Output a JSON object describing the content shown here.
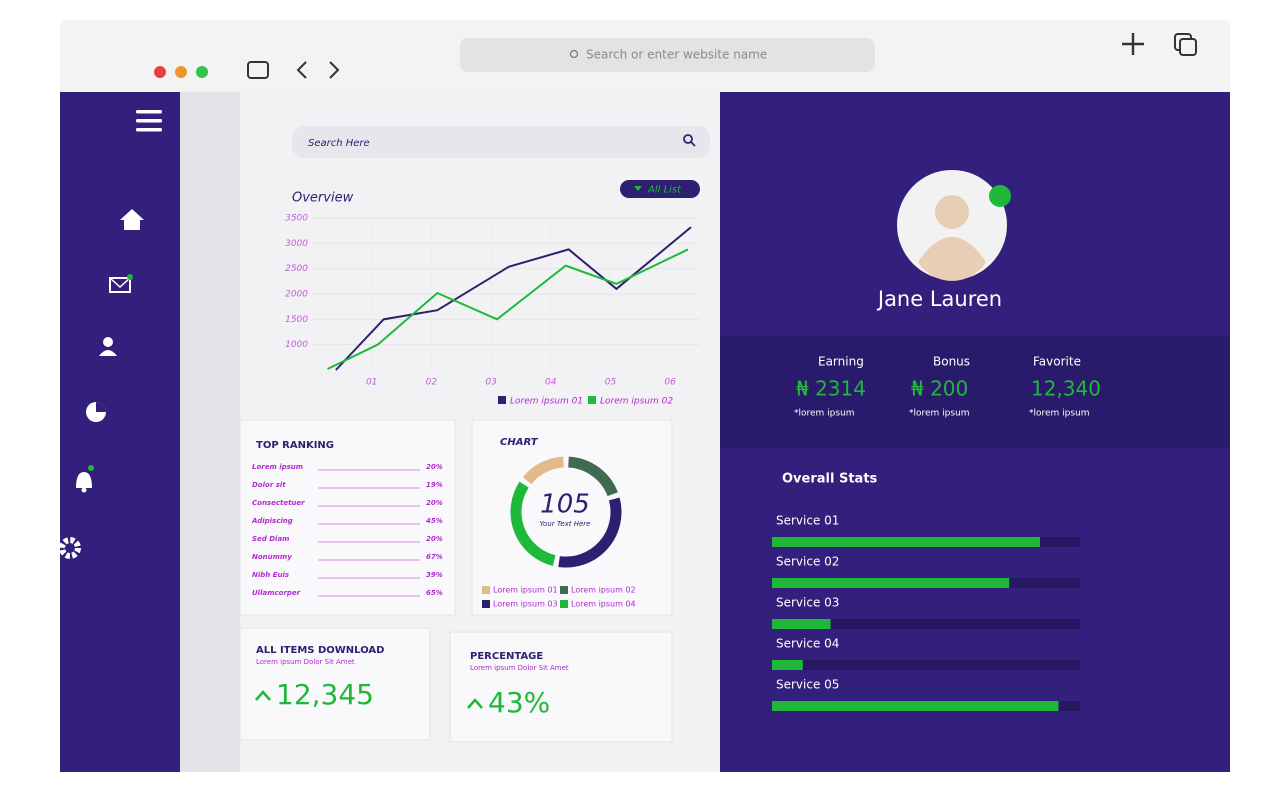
{
  "browser": {
    "search_placeholder": "Search or enter website name"
  },
  "search": {
    "placeholder": "Search Here"
  },
  "overview": {
    "title": "Overview",
    "filter": "All List",
    "chart": {
      "type": "line",
      "xlim": [
        0,
        6.5
      ],
      "xticks": [
        {
          "value": 1,
          "label": "01"
        },
        {
          "value": 2,
          "label": "02"
        },
        {
          "value": 3,
          "label": "03"
        },
        {
          "value": 4,
          "label": "04"
        },
        {
          "value": 5,
          "label": "05"
        },
        {
          "value": 6,
          "label": "06"
        }
      ],
      "ylim": [
        500,
        3500
      ],
      "yticks": [
        1000,
        1500,
        2000,
        2500,
        3000,
        3500
      ],
      "grid": true,
      "series": [
        {
          "name": "Lorem ipsum 01",
          "color": "#2e2070",
          "x": [
            0.4,
            1.2,
            2.1,
            3.3,
            4.3,
            5.1,
            6.35
          ],
          "values": [
            500,
            1500,
            1680,
            2540,
            2880,
            2100,
            3320
          ]
        },
        {
          "name": "Lorem ipsum 02",
          "color": "#1fb83a",
          "x": [
            0.26,
            1.1,
            2.1,
            3.1,
            4.25,
            5.1,
            6.3
          ],
          "values": [
            520,
            1000,
            2020,
            1500,
            2560,
            2200,
            2880
          ]
        }
      ]
    }
  },
  "ranking": {
    "title": "TOP RANKING",
    "rows": [
      {
        "label": "Lorem ipsum",
        "value": "20%"
      },
      {
        "label": "Dolor sit",
        "value": "19%"
      },
      {
        "label": "Consectetuer",
        "value": "20%"
      },
      {
        "label": "Adipiscing",
        "value": "45%"
      },
      {
        "label": "Sed Diam",
        "value": "20%"
      },
      {
        "label": "Nonummy",
        "value": "67%"
      },
      {
        "label": "Nibh Euis",
        "value": "39%"
      },
      {
        "label": "Ullamcorper",
        "value": "65%"
      }
    ]
  },
  "donut": {
    "title": "CHART",
    "center_value": "105",
    "center_text": "Your Text Here",
    "segments": [
      {
        "name": "Lorem ipsum 01",
        "color": "#e2b98a",
        "value": 15
      },
      {
        "name": "Lorem ipsum 02",
        "color": "#3f6b50",
        "value": 20
      },
      {
        "name": "Lorem ipsum 03",
        "color": "#2e2070",
        "value": 33
      },
      {
        "name": "Lorem ipsum 04",
        "color": "#1fb83a",
        "value": 32
      }
    ]
  },
  "downloads": {
    "title": "ALL ITEMS DOWNLOAD",
    "subtitle": "Lorem ipsum Dolor Sit Amet",
    "value": "12,345"
  },
  "percentage": {
    "title": "PERCENTAGE",
    "subtitle": "Lorem ipsum Dolor Sit Amet",
    "value": "43%"
  },
  "profile": {
    "name": "Jane Lauren",
    "stats": [
      {
        "label": "Earning",
        "value": "₦ 2314",
        "note": "*lorem ipsum"
      },
      {
        "label": "Bonus",
        "value": "₦ 200",
        "note": "*lorem ipsum"
      },
      {
        "label": "Favorite",
        "value": "12,340",
        "note": "*lorem ipsum"
      }
    ]
  },
  "overall": {
    "title": "Overall Stats",
    "services": [
      {
        "name": "Service  01",
        "progress": 0.87
      },
      {
        "name": "Service 02",
        "progress": 0.77
      },
      {
        "name": "Service 03",
        "progress": 0.19
      },
      {
        "name": "Service 04",
        "progress": 0.1
      },
      {
        "name": "Service  05",
        "progress": 0.93
      }
    ]
  }
}
